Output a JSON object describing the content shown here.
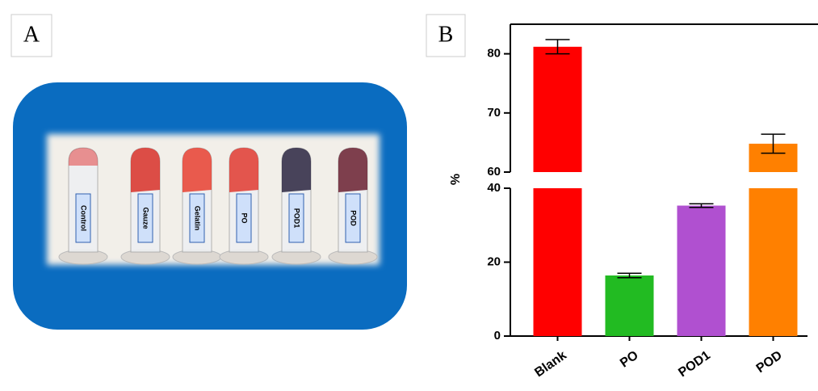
{
  "panel_a": {
    "label": "A",
    "tube_labels": [
      "Control",
      "Gauze",
      "Gelatin",
      "PO",
      "POD1",
      "POD"
    ]
  },
  "panel_b": {
    "label": "B"
  },
  "chart_data": {
    "type": "bar",
    "y_label": "%",
    "categories": [
      "Blank",
      "PO",
      "POD1",
      "POD"
    ],
    "values": [
      81.2,
      16.4,
      35.3,
      64.8
    ],
    "errors": [
      1.2,
      0.6,
      0.5,
      1.6
    ],
    "colors": [
      "#ff0000",
      "#22bb22",
      "#b050d0",
      "#ff8000"
    ],
    "ylim_lower": [
      0,
      40
    ],
    "yticks_lower": [
      0,
      20,
      40
    ],
    "ylim_upper": [
      60,
      85
    ],
    "yticks_upper": [
      60,
      70,
      80
    ]
  }
}
